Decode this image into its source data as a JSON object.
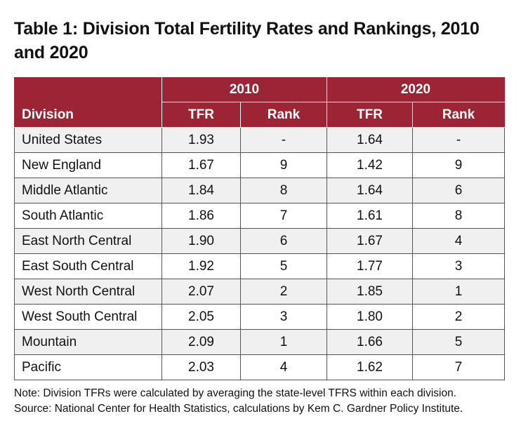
{
  "title": "Table 1: Division Total Fertility Rates and Rankings, 2010 and 2020",
  "table": {
    "division_header": "Division",
    "year_groups": [
      "2010",
      "2020"
    ],
    "sub_headers": [
      "TFR",
      "Rank",
      "TFR",
      "Rank"
    ],
    "rows": [
      {
        "division": "United States",
        "tfr_2010": "1.93",
        "rank_2010": "-",
        "tfr_2020": "1.64",
        "rank_2020": "-"
      },
      {
        "division": "New England",
        "tfr_2010": "1.67",
        "rank_2010": "9",
        "tfr_2020": "1.42",
        "rank_2020": "9"
      },
      {
        "division": "Middle Atlantic",
        "tfr_2010": "1.84",
        "rank_2010": "8",
        "tfr_2020": "1.64",
        "rank_2020": "6"
      },
      {
        "division": "South Atlantic",
        "tfr_2010": "1.86",
        "rank_2010": "7",
        "tfr_2020": "1.61",
        "rank_2020": "8"
      },
      {
        "division": "East North Central",
        "tfr_2010": "1.90",
        "rank_2010": "6",
        "tfr_2020": "1.67",
        "rank_2020": "4"
      },
      {
        "division": "East South Central",
        "tfr_2010": "1.92",
        "rank_2010": "5",
        "tfr_2020": "1.77",
        "rank_2020": "3"
      },
      {
        "division": "West North Central",
        "tfr_2010": "2.07",
        "rank_2010": "2",
        "tfr_2020": "1.85",
        "rank_2020": "1"
      },
      {
        "division": "West South Central",
        "tfr_2010": "2.05",
        "rank_2010": "3",
        "tfr_2020": "1.80",
        "rank_2020": "2"
      },
      {
        "division": "Mountain",
        "tfr_2010": "2.09",
        "rank_2010": "1",
        "tfr_2020": "1.66",
        "rank_2020": "5"
      },
      {
        "division": "Pacific",
        "tfr_2010": "2.03",
        "rank_2010": "4",
        "tfr_2020": "1.62",
        "rank_2020": "7"
      }
    ]
  },
  "notes": {
    "note": "Note: Division TFRs were calculated by averaging the state-level TFRS within each division.",
    "source": "Source: National Center for Health Statistics, calculations by Kem C. Gardner Policy Institute."
  }
}
